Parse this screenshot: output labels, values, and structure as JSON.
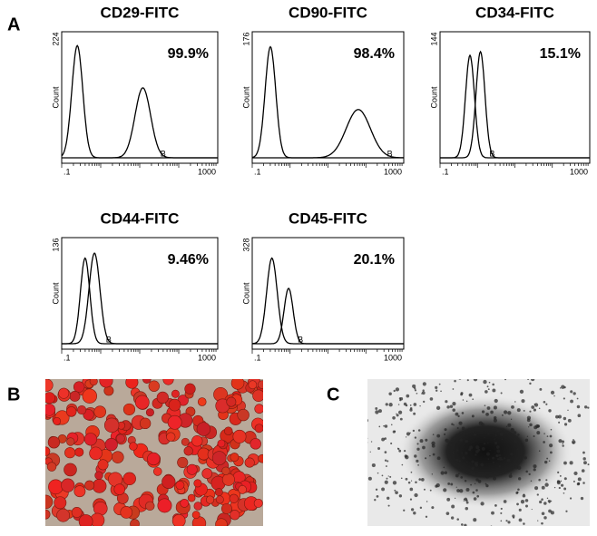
{
  "panel_labels": [
    "A",
    "B",
    "C"
  ],
  "histograms": [
    {
      "title": "CD29-FITC",
      "percent": "99.9%",
      "y_max": "224",
      "y_label": "Count",
      "x_min": ".1",
      "x_max": "1000",
      "gate_label": "B"
    },
    {
      "title": "CD90-FITC",
      "percent": "98.4%",
      "y_max": "176",
      "y_label": "Count",
      "x_min": ".1",
      "x_max": "1000",
      "gate_label": "B"
    },
    {
      "title": "CD34-FITC",
      "percent": "15.1%",
      "y_max": "144",
      "y_label": "Count",
      "x_min": ".1",
      "x_max": "1000",
      "gate_label": "B"
    },
    {
      "title": "CD44-FITC",
      "percent": "9.46%",
      "y_max": "136",
      "y_label": "Count",
      "x_min": ".1",
      "x_max": "1000",
      "gate_label": "B"
    },
    {
      "title": "CD45-FITC",
      "percent": "20.1%",
      "y_max": "328",
      "y_label": "Count",
      "x_min": ".1",
      "x_max": "1000",
      "gate_label": "B"
    }
  ]
}
